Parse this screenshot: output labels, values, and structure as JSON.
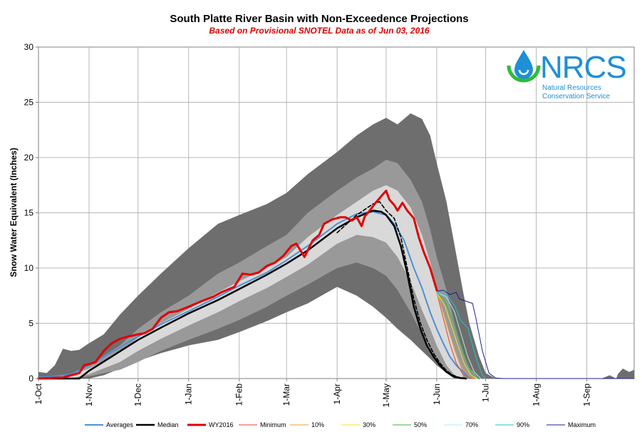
{
  "chart_data": {
    "type": "area",
    "title": "South Platte River Basin with Non-Exceedence Projections",
    "subtitle": "Based on Provisional SNOTEL Data as of Jun 03, 2016",
    "xlabel": "",
    "ylabel": "Snow Water Equivalent (Inches)",
    "ylim": [
      0,
      30
    ],
    "yticks": [
      0,
      5,
      10,
      15,
      20,
      25,
      30
    ],
    "x_unit": "days since Oct 1",
    "xlim": [
      0,
      365
    ],
    "xticks": [
      {
        "label": "1-Oct",
        "day": 0
      },
      {
        "label": "1-Nov",
        "day": 31
      },
      {
        "label": "1-Dec",
        "day": 61
      },
      {
        "label": "1-Jan",
        "day": 92
      },
      {
        "label": "1-Feb",
        "day": 123
      },
      {
        "label": "1-Mar",
        "day": 152
      },
      {
        "label": "1-Apr",
        "day": 183
      },
      {
        "label": "1-May",
        "day": 213
      },
      {
        "label": "1-Jun",
        "day": 244
      },
      {
        "label": "1-Jul",
        "day": 274
      },
      {
        "label": "1-Aug",
        "day": 305
      },
      {
        "label": "1-Sep",
        "day": 336
      }
    ],
    "grid": true,
    "legend_position": "bottom",
    "bands": [
      {
        "name": "Max-Min range",
        "color": "#6e6e6e",
        "x": [
          0,
          5,
          10,
          15,
          20,
          25,
          31,
          40,
          50,
          61,
          75,
          92,
          110,
          123,
          140,
          152,
          165,
          183,
          195,
          205,
          213,
          220,
          228,
          235,
          240,
          244,
          250,
          255,
          260,
          264,
          270,
          274,
          280
        ],
        "upper": [
          0.6,
          0.5,
          1.2,
          2.7,
          2.5,
          2.6,
          3.2,
          4.0,
          5.8,
          7.5,
          9.5,
          11.8,
          14.0,
          14.8,
          15.8,
          16.8,
          18.5,
          20.5,
          22.0,
          23.0,
          23.6,
          23.0,
          24.0,
          23.5,
          22.0,
          19.5,
          16.0,
          12.0,
          8.0,
          5.0,
          2.0,
          0.5,
          0.0
        ],
        "lower": [
          0.0,
          0.0,
          0.0,
          0.0,
          0.0,
          0.0,
          0.0,
          0.3,
          0.9,
          1.6,
          2.3,
          3.0,
          3.5,
          4.2,
          5.2,
          6.0,
          6.8,
          8.3,
          7.5,
          6.5,
          5.5,
          4.5,
          3.5,
          2.5,
          1.8,
          1.2,
          0.5,
          0.0,
          0.0,
          0.0,
          0.0,
          0.0,
          0.0
        ]
      },
      {
        "name": "10-90 range",
        "color": "#999999",
        "x": [
          0,
          20,
          31,
          50,
          61,
          75,
          92,
          110,
          123,
          140,
          152,
          165,
          183,
          195,
          205,
          213,
          220,
          228,
          235,
          240,
          244,
          250,
          255,
          260,
          264,
          270
        ],
        "upper": [
          0.0,
          0.4,
          1.2,
          3.0,
          4.5,
          6.0,
          7.5,
          9.5,
          10.5,
          12.0,
          13.0,
          15.0,
          17.0,
          18.2,
          19.0,
          19.8,
          19.5,
          18.0,
          16.0,
          13.5,
          11.0,
          8.0,
          5.0,
          2.5,
          1.0,
          0.0
        ],
        "lower": [
          0.0,
          0.0,
          0.2,
          0.8,
          1.5,
          2.5,
          3.5,
          4.5,
          5.3,
          6.5,
          7.5,
          8.5,
          10.0,
          10.5,
          10.0,
          9.3,
          8.0,
          6.0,
          4.0,
          2.6,
          1.6,
          0.6,
          0.1,
          0.0,
          0.0,
          0.0
        ]
      },
      {
        "name": "30-70 range",
        "color": "#d9d9d9",
        "x": [
          0,
          20,
          31,
          50,
          61,
          75,
          92,
          110,
          123,
          140,
          152,
          165,
          183,
          195,
          205,
          213,
          220,
          228,
          235,
          240,
          244,
          250,
          255,
          260
        ],
        "upper": [
          0.0,
          0.3,
          0.9,
          2.4,
          3.7,
          5.0,
          6.3,
          7.8,
          8.8,
          10.0,
          11.0,
          12.8,
          14.8,
          16.0,
          17.0,
          17.5,
          17.0,
          15.5,
          13.0,
          10.5,
          8.0,
          5.0,
          2.5,
          0.5
        ],
        "lower": [
          0.0,
          0.0,
          0.4,
          1.5,
          2.5,
          3.6,
          4.8,
          6.0,
          7.0,
          8.2,
          9.2,
          10.3,
          12.2,
          13.0,
          12.8,
          12.3,
          11.0,
          8.8,
          6.2,
          4.5,
          3.0,
          1.2,
          0.3,
          0.0
        ]
      }
    ],
    "series": [
      {
        "name": "Averages",
        "color": "#4f8fd6",
        "width": 2,
        "dash": "",
        "x": [
          0,
          10,
          20,
          31,
          45,
          61,
          75,
          92,
          110,
          123,
          140,
          152,
          165,
          183,
          195,
          205,
          213,
          218,
          224,
          230,
          235,
          240,
          244,
          248,
          252,
          256,
          260,
          264,
          268,
          270
        ],
        "y": [
          0.1,
          0.2,
          0.4,
          1.2,
          2.4,
          3.8,
          4.9,
          6.1,
          7.4,
          8.4,
          9.6,
          10.7,
          12.0,
          14.0,
          14.9,
          15.1,
          14.8,
          14.0,
          12.5,
          10.0,
          8.2,
          6.0,
          4.5,
          3.2,
          2.0,
          1.2,
          0.6,
          0.2,
          0.05,
          0.0
        ]
      },
      {
        "name": "Median",
        "color": "#000000",
        "width": 2.5,
        "dash": "",
        "x": [
          0,
          10,
          20,
          25,
          31,
          45,
          61,
          75,
          92,
          110,
          123,
          140,
          152,
          165,
          183,
          195,
          205,
          210,
          213,
          218,
          222,
          226,
          230,
          234,
          238,
          242,
          246,
          250,
          254,
          258,
          262
        ],
        "y": [
          0.0,
          0.0,
          0.0,
          0.0,
          0.7,
          2.0,
          3.5,
          4.6,
          5.9,
          7.1,
          8.1,
          9.4,
          10.4,
          11.6,
          13.6,
          14.6,
          15.2,
          15.1,
          14.8,
          13.8,
          12.0,
          9.5,
          6.5,
          4.5,
          3.0,
          2.0,
          1.2,
          0.6,
          0.2,
          0.05,
          0.0
        ]
      },
      {
        "name": "Median dashed",
        "color": "#000000",
        "width": 1.6,
        "dash": "5,3",
        "x": [
          183,
          195,
          205,
          209,
          213,
          218,
          222,
          226,
          230,
          234,
          238,
          242,
          246,
          250,
          254,
          258,
          262
        ],
        "y": [
          13.2,
          14.8,
          15.8,
          16.0,
          15.2,
          14.5,
          12.8,
          10.0,
          7.2,
          5.0,
          3.5,
          2.3,
          1.4,
          0.7,
          0.3,
          0.1,
          0.0
        ]
      },
      {
        "name": "WY2016",
        "color": "#e00000",
        "width": 3,
        "dash": "",
        "x": [
          0,
          15,
          25,
          28,
          31,
          35,
          40,
          45,
          50,
          55,
          61,
          65,
          70,
          75,
          80,
          85,
          92,
          100,
          107,
          112,
          120,
          125,
          130,
          135,
          140,
          145,
          150,
          155,
          158,
          163,
          168,
          172,
          175,
          180,
          185,
          188,
          192,
          195,
          198,
          200,
          203,
          206,
          210,
          213,
          215,
          218,
          220,
          223,
          226,
          230,
          233,
          236,
          240,
          244
        ],
        "y": [
          0.0,
          0.1,
          0.5,
          1.2,
          1.3,
          1.5,
          2.5,
          3.2,
          3.6,
          3.8,
          4.0,
          4.1,
          4.5,
          5.5,
          6.0,
          6.1,
          6.5,
          7.0,
          7.4,
          7.8,
          8.3,
          9.5,
          9.4,
          9.6,
          10.2,
          10.5,
          11.1,
          12.0,
          12.2,
          11.0,
          12.5,
          13.0,
          14.0,
          14.4,
          14.6,
          14.6,
          14.3,
          14.6,
          13.8,
          14.7,
          15.2,
          15.8,
          16.5,
          17.0,
          16.2,
          15.7,
          15.2,
          15.9,
          15.2,
          14.5,
          12.8,
          11.5,
          10.0,
          8.0
        ]
      },
      {
        "name": "Minimum",
        "color": "#e8402a",
        "width": 1,
        "dash": "",
        "x": [
          244,
          248,
          252,
          256,
          260,
          264,
          266
        ],
        "y": [
          7.8,
          5.5,
          3.2,
          1.4,
          0.4,
          0.05,
          0.0
        ]
      },
      {
        "name": "10%",
        "color": "#f0a030",
        "width": 1,
        "dash": "",
        "x": [
          244,
          248,
          252,
          256,
          260,
          264,
          268
        ],
        "y": [
          7.8,
          6.0,
          4.0,
          2.2,
          0.9,
          0.2,
          0.0
        ]
      },
      {
        "name": "30%",
        "color": "#f2e22c",
        "width": 1,
        "dash": "",
        "x": [
          244,
          249,
          253,
          257,
          261,
          265,
          269
        ],
        "y": [
          7.8,
          6.6,
          4.8,
          3.0,
          1.3,
          0.3,
          0.0
        ]
      },
      {
        "name": "50%",
        "color": "#3cb43c",
        "width": 1,
        "dash": "",
        "x": [
          244,
          249,
          254,
          258,
          262,
          266,
          270
        ],
        "y": [
          7.8,
          7.0,
          5.3,
          3.4,
          1.6,
          0.4,
          0.0
        ]
      },
      {
        "name": "70%",
        "color": "#b0ecf0",
        "width": 1,
        "dash": "",
        "x": [
          244,
          250,
          255,
          259,
          263,
          267,
          271
        ],
        "y": [
          7.8,
          7.4,
          6.0,
          4.0,
          2.0,
          0.6,
          0.0
        ]
      },
      {
        "name": "90%",
        "color": "#22c0d0",
        "width": 1,
        "dash": "",
        "x": [
          244,
          250,
          255,
          259,
          263,
          266,
          269,
          272,
          274
        ],
        "y": [
          7.8,
          7.6,
          6.6,
          5.2,
          4.6,
          3.0,
          1.5,
          0.3,
          0.0
        ]
      },
      {
        "name": "Maximum",
        "color": "#1c1c9a",
        "width": 1,
        "dash": "",
        "x": [
          244,
          248,
          252,
          256,
          258,
          262,
          266,
          268,
          272,
          276,
          280,
          285,
          290,
          300,
          320,
          340,
          355,
          365
        ],
        "y": [
          7.9,
          8.0,
          7.6,
          7.8,
          7.2,
          7.0,
          6.8,
          5.5,
          2.5,
          0.5,
          0.05,
          0.0,
          0.0,
          0.0,
          0.0,
          0.0,
          0.0,
          0.0
        ]
      }
    ],
    "late_season": {
      "x": [
        345,
        350,
        354,
        355,
        358,
        362,
        365
      ],
      "upper": [
        0.0,
        0.3,
        0.0,
        0.4,
        0.9,
        0.6,
        0.8
      ],
      "lower": [
        0.0,
        0.0,
        0.0,
        0.0,
        0.0,
        0.0,
        0.0
      ]
    },
    "legend": [
      "Averages",
      "Median",
      "WY2016",
      "Minimum",
      "10%",
      "30%",
      "50%",
      "70%",
      "90%",
      "Maximum"
    ]
  },
  "logo": {
    "name": "NRCS",
    "line1": "Natural Resources",
    "line2": "Conservation Service",
    "color": "#1f8fd6",
    "accent": "#2dbb3c"
  }
}
